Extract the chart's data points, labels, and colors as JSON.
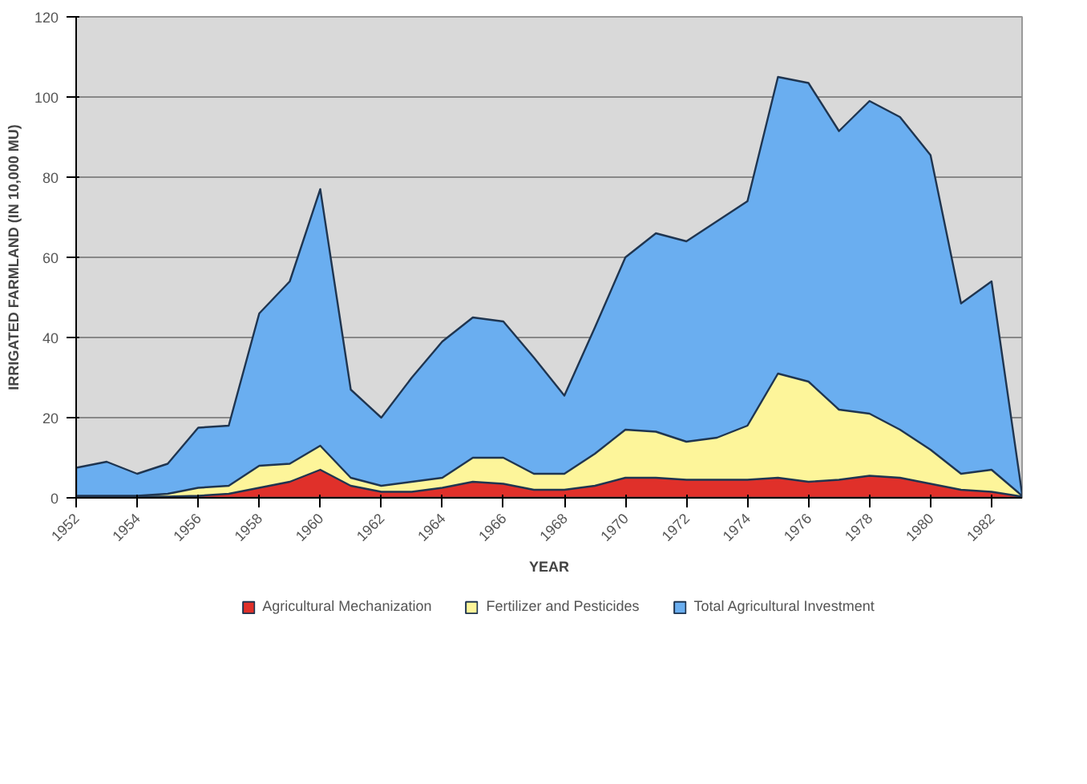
{
  "chart_data": {
    "type": "area",
    "xlabel": "YEAR",
    "ylabel": "IRRIGATED FARMLAND (IN 10,000 MU)",
    "x": [
      1952,
      1953,
      1954,
      1955,
      1956,
      1957,
      1958,
      1959,
      1960,
      1961,
      1962,
      1963,
      1964,
      1965,
      1966,
      1967,
      1968,
      1969,
      1970,
      1971,
      1972,
      1973,
      1974,
      1975,
      1976,
      1977,
      1978,
      1979,
      1980,
      1981,
      1982,
      1983
    ],
    "series": [
      {
        "name": "Total Agricultural Investment",
        "color": "#6aaef0",
        "values": [
          7.5,
          9,
          6,
          8.5,
          17.5,
          18,
          46,
          54,
          77,
          27,
          20,
          30,
          39,
          45,
          44,
          35,
          25.5,
          42.5,
          60,
          66,
          64,
          69,
          74,
          105,
          103.5,
          91.5,
          99,
          95,
          85.5,
          48.5,
          54,
          1
        ]
      },
      {
        "name": "Fertilizer and Pesticides",
        "color": "#fdf59a",
        "values": [
          0.5,
          0.5,
          0.5,
          1,
          2.5,
          3,
          8,
          8.5,
          13,
          5,
          3,
          4,
          5,
          10,
          10,
          6,
          6,
          11,
          17,
          16.5,
          14,
          15,
          18,
          31,
          29,
          22,
          21,
          17,
          12,
          6,
          7,
          0.5
        ]
      },
      {
        "name": "Agricultural Mechanization",
        "color": "#e0302a",
        "values": [
          0.3,
          0.3,
          0.3,
          0.3,
          0.5,
          1,
          2.5,
          4,
          7,
          3,
          1.5,
          1.5,
          2.5,
          4,
          3.5,
          2,
          2,
          3,
          5,
          5,
          4.5,
          4.5,
          4.5,
          5,
          4,
          4.5,
          5.5,
          5,
          3.5,
          2,
          1.5,
          0.3
        ]
      }
    ],
    "xlim": [
      1952,
      1983
    ],
    "xticks": [
      1952,
      1954,
      1956,
      1958,
      1960,
      1962,
      1964,
      1966,
      1968,
      1970,
      1972,
      1974,
      1976,
      1978,
      1980,
      1982
    ],
    "ylim": [
      0,
      120
    ],
    "yticks": [
      0,
      20,
      40,
      60,
      80,
      100,
      120
    ],
    "grid": "y",
    "legend": "bottom"
  }
}
